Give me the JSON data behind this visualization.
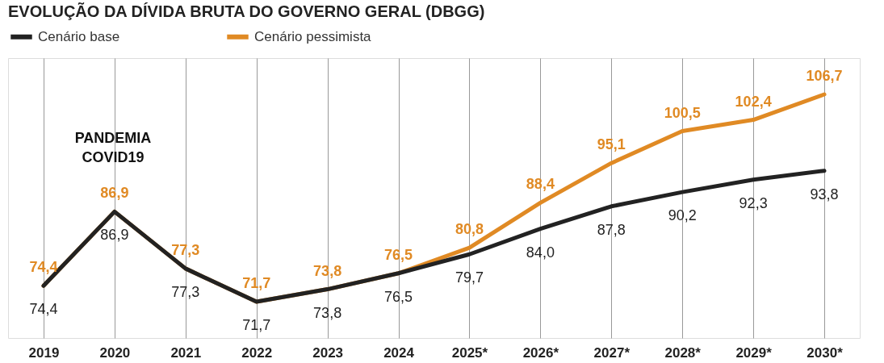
{
  "chart_data": {
    "type": "line",
    "title": "EVOLUÇÃO DA DÍVIDA BRUTA DO GOVERNO GERAL (DBGG)",
    "categories": [
      "2019",
      "2020",
      "2021",
      "2022",
      "2023",
      "2024",
      "2025*",
      "2026*",
      "2027*",
      "2028*",
      "2029*",
      "2030*"
    ],
    "series": [
      {
        "name": "Cenário base",
        "color": "#222222",
        "values": [
          74.4,
          86.9,
          77.3,
          71.7,
          73.8,
          76.5,
          79.7,
          84.0,
          87.8,
          90.2,
          92.3,
          93.8
        ],
        "value_labels": [
          "74,4",
          "86,9",
          "77,3",
          "71,7",
          "73,8",
          "76,5",
          "79,7",
          "84,0",
          "87,8",
          "90,2",
          "92,3",
          "93,8"
        ]
      },
      {
        "name": "Cenário pessimista",
        "color": "#e08a24",
        "values": [
          74.4,
          86.9,
          77.3,
          71.7,
          73.8,
          76.5,
          80.8,
          88.4,
          95.1,
          100.5,
          102.4,
          106.7
        ],
        "value_labels": [
          "74,4",
          "86,9",
          "77,3",
          "71,7",
          "73,8",
          "76,5",
          "80,8",
          "88,4",
          "95,1",
          "100,5",
          "102,4",
          "106,7"
        ]
      }
    ],
    "annotations": [
      "PANDEMIA\nCOVID19"
    ],
    "legend": "top left",
    "grid": "x",
    "tick_labels": "x",
    "marker": "none",
    "line_style": "solid"
  }
}
